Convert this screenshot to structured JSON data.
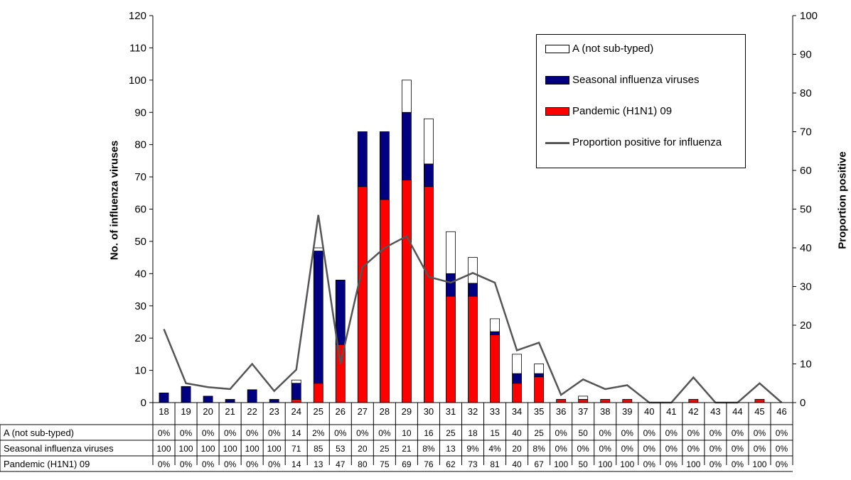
{
  "chart_data": {
    "type": "bar",
    "stacked": true,
    "categories": [
      "18",
      "19",
      "20",
      "21",
      "22",
      "23",
      "24",
      "25",
      "26",
      "27",
      "28",
      "29",
      "30",
      "31",
      "32",
      "33",
      "34",
      "35",
      "36",
      "37",
      "38",
      "39",
      "40",
      "41",
      "42",
      "43",
      "44",
      "45",
      "46"
    ],
    "series": [
      {
        "name": "Pandemic (H1N1) 09",
        "color": "#ff0000",
        "values": [
          0,
          0,
          0,
          0,
          0,
          0,
          1,
          6,
          18,
          67,
          63,
          69,
          67,
          33,
          33,
          21,
          6,
          8,
          1,
          1,
          1,
          1,
          0,
          0,
          1,
          0,
          0,
          1,
          0
        ]
      },
      {
        "name": "Seasonal influenza viruses",
        "color": "#000080",
        "values": [
          3,
          5,
          2,
          1,
          4,
          1,
          5,
          41,
          20,
          17,
          21,
          21,
          7,
          7,
          4,
          1,
          3,
          1,
          0,
          0,
          0,
          0,
          0,
          0,
          0,
          0,
          0,
          0,
          0
        ]
      },
      {
        "name": "A (not sub-typed)",
        "color": "#ffffff",
        "values": [
          0,
          0,
          0,
          0,
          0,
          0,
          1,
          1,
          0,
          0,
          0,
          10,
          14,
          13,
          8,
          4,
          6,
          3,
          0,
          1,
          0,
          0,
          0,
          0,
          0,
          0,
          0,
          0,
          0
        ]
      }
    ],
    "line": {
      "name": "Proportion positive for influenza",
      "color": "#555555",
      "values": [
        19,
        5,
        4,
        3.5,
        10,
        3,
        8.5,
        48.5,
        10,
        35,
        40,
        43,
        32.5,
        31,
        33.5,
        31,
        13.5,
        15.5,
        2,
        6,
        3.5,
        4.5,
        0,
        0,
        6.5,
        0,
        0,
        5,
        0
      ]
    },
    "ylabel": "No. of influenza viruses",
    "ylim": [
      0,
      120
    ],
    "yticks": [
      0,
      10,
      20,
      30,
      40,
      50,
      60,
      70,
      80,
      90,
      100,
      110,
      120
    ],
    "y2label": "Proportion positive",
    "y2lim": [
      0,
      100
    ],
    "y2ticks": [
      0,
      10,
      20,
      30,
      40,
      50,
      60,
      70,
      80,
      90,
      100
    ],
    "legend_position": "top-right",
    "legend_order": [
      "A (not sub-typed)",
      "Seasonal influenza viruses",
      "Pandemic (H1N1) 09",
      "Proportion positive for influenza"
    ],
    "table": {
      "rows": [
        {
          "label": "A (not sub-typed)",
          "cells": [
            "0%",
            "0%",
            "0%",
            "0%",
            "0%",
            "0%",
            "14",
            "2%",
            "0%",
            "0%",
            "0%",
            "10",
            "16",
            "25",
            "18",
            "15",
            "40",
            "25",
            "0%",
            "50",
            "0%",
            "0%",
            "0%",
            "0%",
            "0%",
            "0%",
            "0%",
            "0%",
            "0%"
          ]
        },
        {
          "label": "Seasonal influenza viruses",
          "cells": [
            "100",
            "100",
            "100",
            "100",
            "100",
            "100",
            "71",
            "85",
            "53",
            "20",
            "25",
            "21",
            "8%",
            "13",
            "9%",
            "4%",
            "20",
            "8%",
            "0%",
            "0%",
            "0%",
            "0%",
            "0%",
            "0%",
            "0%",
            "0%",
            "0%",
            "0%",
            "0%"
          ]
        },
        {
          "label": "Pandemic (H1N1) 09",
          "cells": [
            "0%",
            "0%",
            "0%",
            "0%",
            "0%",
            "0%",
            "14",
            "13",
            "47",
            "80",
            "75",
            "69",
            "76",
            "62",
            "73",
            "81",
            "40",
            "67",
            "100",
            "50",
            "100",
            "100",
            "0%",
            "0%",
            "100",
            "0%",
            "0%",
            "100",
            "0%"
          ]
        }
      ]
    }
  }
}
